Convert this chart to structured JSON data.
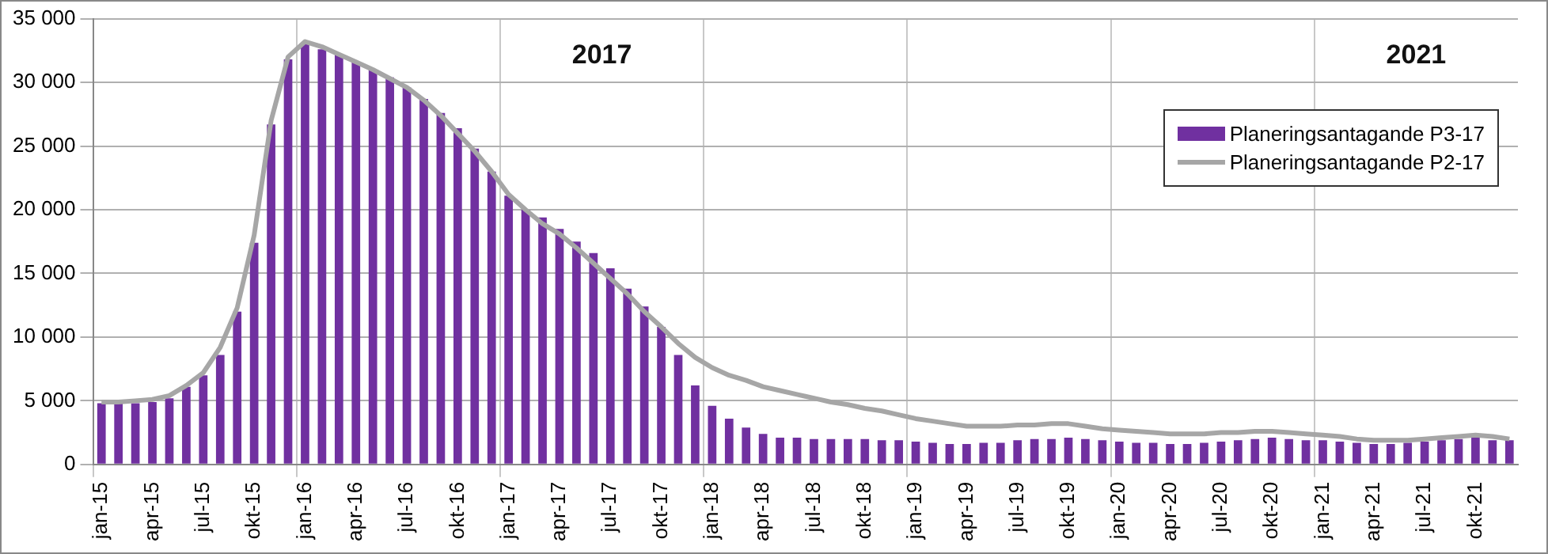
{
  "chart_data": {
    "type": "bar",
    "categories": [
      "jan-15",
      null,
      null,
      "apr-15",
      null,
      null,
      "jul-15",
      null,
      null,
      "okt-15",
      null,
      null,
      "jan-16",
      null,
      null,
      "apr-16",
      null,
      null,
      "jul-16",
      null,
      null,
      "okt-16",
      null,
      null,
      "jan-17",
      null,
      null,
      "apr-17",
      null,
      null,
      "jul-17",
      null,
      null,
      "okt-17",
      null,
      null,
      "jan-18",
      null,
      null,
      "apr-18",
      null,
      null,
      "jul-18",
      null,
      null,
      "okt-18",
      null,
      null,
      "jan-19",
      null,
      null,
      "apr-19",
      null,
      null,
      "jul-19",
      null,
      null,
      "okt-19",
      null,
      null,
      "jan-20",
      null,
      null,
      "apr-20",
      null,
      null,
      "jul-20",
      null,
      null,
      "okt-20",
      null,
      null,
      "jan-21",
      null,
      null,
      "apr-21",
      null,
      null,
      "jul-21",
      null,
      null,
      "okt-21",
      null,
      null
    ],
    "series": [
      {
        "name": "Planeringsantagande P3-17",
        "color": "#7030a0",
        "values": [
          4800,
          4800,
          4800,
          4900,
          5200,
          6100,
          7000,
          8600,
          12000,
          17400,
          26700,
          31800,
          33000,
          32600,
          32200,
          31600,
          31000,
          30400,
          29600,
          28700,
          27600,
          26400,
          24800,
          23000,
          21100,
          20000,
          19400,
          18500,
          17500,
          16600,
          15400,
          13800,
          12400,
          10800,
          8600,
          6200,
          4600,
          3600,
          2900,
          2400,
          2100,
          2100,
          2000,
          2000,
          2000,
          2000,
          1900,
          1900,
          1800,
          1700,
          1600,
          1600,
          1700,
          1700,
          1900,
          2000,
          2000,
          2100,
          2000,
          1900,
          1800,
          1700,
          1700,
          1600,
          1600,
          1700,
          1800,
          1900,
          2000,
          2100,
          2000,
          1900,
          1900,
          1800,
          1700,
          1600,
          1600,
          1700,
          1800,
          1900,
          2000,
          2100,
          1900,
          1900
        ]
      },
      {
        "name": "Planeringsantagande P2-17",
        "type": "line",
        "color": "#a6a6a6",
        "values": [
          4900,
          4900,
          5000,
          5100,
          5400,
          6200,
          7200,
          9200,
          12300,
          18000,
          27000,
          32000,
          33200,
          32800,
          32200,
          31600,
          31000,
          30300,
          29600,
          28600,
          27400,
          26000,
          24600,
          23000,
          21200,
          20000,
          18900,
          18100,
          17000,
          15800,
          14600,
          13400,
          12000,
          10800,
          9500,
          8400,
          7600,
          7000,
          6600,
          6100,
          5800,
          5500,
          5200,
          4900,
          4700,
          4400,
          4200,
          3900,
          3600,
          3400,
          3200,
          3000,
          3000,
          3000,
          3100,
          3100,
          3200,
          3200,
          3000,
          2800,
          2700,
          2600,
          2500,
          2400,
          2400,
          2400,
          2500,
          2500,
          2600,
          2600,
          2500,
          2400,
          2300,
          2200,
          2000,
          1900,
          1900,
          1900,
          2000,
          2100,
          2200,
          2300,
          2200,
          2000
        ]
      }
    ],
    "ylim": [
      0,
      35000
    ],
    "yticks": [
      0,
      {
        "value": 5000,
        "label": "5 000"
      },
      {
        "value": 10000,
        "label": "10 000"
      },
      {
        "value": 15000,
        "label": "15 000"
      },
      {
        "value": 20000,
        "label": "20 000"
      },
      {
        "value": 25000,
        "label": "25 000"
      },
      {
        "value": 30000,
        "label": "30 000"
      },
      {
        "value": 35000,
        "label": "35 000"
      }
    ],
    "annotations": [
      "2017",
      "2021"
    ],
    "grid": true,
    "legend": "top right",
    "marker": "none",
    "line_style": "solid"
  }
}
